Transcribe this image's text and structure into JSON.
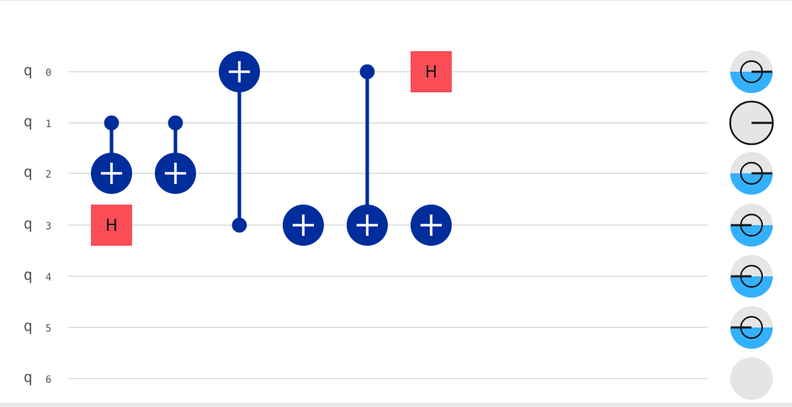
{
  "circuit": {
    "qubit_label": "q",
    "qubits": [
      "0",
      "1",
      "2",
      "3",
      "4",
      "5",
      "6"
    ],
    "colors": {
      "wire": "#d9d9d9",
      "gate_blue": "#002d9c",
      "h_gate": "#fa4d56",
      "state_fill": "#33b1ff",
      "state_bg": "#e5e5e5",
      "state_outline": "#161616"
    },
    "gates": [
      {
        "type": "CNOT",
        "control": 1,
        "target": 2,
        "column": 0
      },
      {
        "type": "H",
        "target": 3,
        "column": 0,
        "label": "H"
      },
      {
        "type": "CNOT",
        "control": 1,
        "target": 2,
        "column": 1
      },
      {
        "type": "CNOT",
        "control": 3,
        "target": 0,
        "column": 2
      },
      {
        "type": "X",
        "target": 3,
        "column": 3
      },
      {
        "type": "CNOT",
        "control": 0,
        "target": 3,
        "column": 4
      },
      {
        "type": "H",
        "target": 0,
        "column": 5,
        "label": "H"
      },
      {
        "type": "X",
        "target": 3,
        "column": 5
      }
    ],
    "state_indicators": [
      {
        "qubit": 0,
        "probability": 0.5,
        "phase": "0"
      },
      {
        "qubit": 1,
        "probability": 0.0,
        "phase": "0"
      },
      {
        "qubit": 2,
        "probability": 0.5,
        "phase": "0"
      },
      {
        "qubit": 3,
        "probability": 0.5,
        "phase": "180"
      },
      {
        "qubit": 4,
        "probability": 0.5,
        "phase": "180"
      },
      {
        "qubit": 5,
        "probability": 0.5,
        "phase": "180"
      },
      {
        "qubit": 6,
        "probability": null,
        "phase": null
      }
    ]
  }
}
